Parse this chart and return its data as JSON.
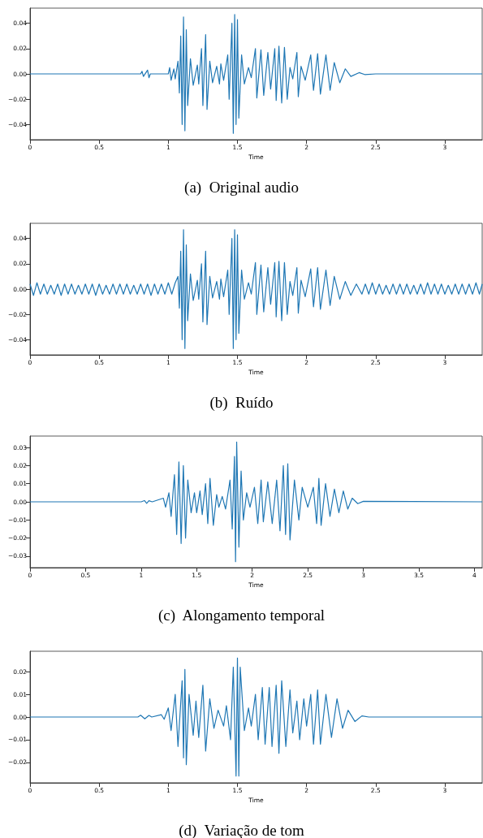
{
  "chart_data": [
    {
      "type": "line",
      "title": "(a)  Original audio",
      "xlabel": "Time",
      "color": "#1f77b4",
      "marker": "none",
      "line_style": "solid",
      "x": [
        0,
        0.8,
        0.81,
        0.82,
        0.85,
        0.86,
        0.87,
        1.0,
        1.01,
        1.02,
        1.04,
        1.05,
        1.07,
        1.08,
        1.09,
        1.1,
        1.11,
        1.12,
        1.13,
        1.14,
        1.16,
        1.18,
        1.21,
        1.22,
        1.24,
        1.25,
        1.27,
        1.28,
        1.3,
        1.32,
        1.35,
        1.37,
        1.38,
        1.4,
        1.43,
        1.44,
        1.46,
        1.47,
        1.48,
        1.49,
        1.5,
        1.51,
        1.53,
        1.55,
        1.58,
        1.6,
        1.63,
        1.64,
        1.67,
        1.69,
        1.72,
        1.74,
        1.77,
        1.78,
        1.8,
        1.82,
        1.84,
        1.86,
        1.88,
        1.9,
        1.93,
        1.94,
        1.96,
        1.99,
        2.03,
        2.05,
        2.08,
        2.1,
        2.14,
        2.17,
        2.2,
        2.24,
        2.28,
        2.32,
        2.38,
        2.42,
        2.5,
        3.27
      ],
      "values": [
        0,
        0,
        0.002,
        -0.002,
        0.003,
        -0.003,
        0,
        0,
        0.005,
        -0.005,
        0.004,
        -0.004,
        0.01,
        -0.015,
        0.03,
        -0.04,
        0.045,
        -0.045,
        0.035,
        -0.025,
        0.012,
        -0.009,
        0.007,
        -0.008,
        0.02,
        -0.025,
        0.031,
        -0.028,
        0.01,
        -0.007,
        0.006,
        -0.008,
        0.008,
        -0.005,
        0.015,
        -0.02,
        0.04,
        -0.047,
        0.047,
        -0.04,
        0.043,
        -0.035,
        0.015,
        -0.008,
        0.005,
        -0.003,
        0.02,
        -0.019,
        0.019,
        -0.017,
        0.017,
        -0.012,
        0.02,
        -0.021,
        0.022,
        -0.023,
        0.021,
        -0.02,
        0.005,
        -0.004,
        0.017,
        -0.018,
        0.006,
        -0.005,
        0.015,
        -0.013,
        0.016,
        -0.016,
        0.015,
        -0.013,
        0.009,
        -0.007,
        0.004,
        -0.002,
        0.001,
        -0.0005,
        0,
        0
      ],
      "xlim": [
        0,
        3.27
      ],
      "xticks": [
        0,
        0.5,
        1,
        1.5,
        2,
        2.5,
        3
      ],
      "ylim": [
        -0.052,
        0.052
      ],
      "yticks": [
        {
          "value": -0.04,
          "label": "−0.04"
        },
        {
          "value": -0.02,
          "label": "−0.02"
        },
        {
          "value": 0,
          "label": "0.00"
        },
        {
          "value": 0.02,
          "label": "0.02"
        },
        {
          "value": 0.04,
          "label": "0.04"
        }
      ]
    },
    {
      "type": "line",
      "title": "(b)  Ruído",
      "xlabel": "Time",
      "color": "#1f77b4",
      "marker": "none",
      "line_style": "solid",
      "x": [
        0,
        0.025,
        0.05,
        0.075,
        0.1,
        0.125,
        0.15,
        0.175,
        0.2,
        0.225,
        0.25,
        0.275,
        0.3,
        0.325,
        0.35,
        0.375,
        0.4,
        0.425,
        0.45,
        0.475,
        0.5,
        0.525,
        0.55,
        0.575,
        0.6,
        0.625,
        0.65,
        0.675,
        0.7,
        0.725,
        0.75,
        0.775,
        0.8,
        0.825,
        0.85,
        0.875,
        0.9,
        0.925,
        0.95,
        0.975,
        1.0,
        1.025,
        1.05,
        1.07,
        1.08,
        1.09,
        1.1,
        1.11,
        1.12,
        1.13,
        1.14,
        1.16,
        1.18,
        1.21,
        1.22,
        1.24,
        1.25,
        1.27,
        1.28,
        1.3,
        1.32,
        1.35,
        1.37,
        1.38,
        1.4,
        1.43,
        1.44,
        1.46,
        1.47,
        1.48,
        1.49,
        1.5,
        1.51,
        1.53,
        1.55,
        1.58,
        1.6,
        1.63,
        1.64,
        1.67,
        1.69,
        1.72,
        1.74,
        1.77,
        1.78,
        1.8,
        1.82,
        1.84,
        1.86,
        1.88,
        1.9,
        1.93,
        1.94,
        1.96,
        1.99,
        2.03,
        2.05,
        2.08,
        2.1,
        2.14,
        2.17,
        2.2,
        2.24,
        2.28,
        2.32,
        2.36,
        2.4,
        2.425,
        2.45,
        2.475,
        2.5,
        2.525,
        2.55,
        2.575,
        2.6,
        2.625,
        2.65,
        2.675,
        2.7,
        2.725,
        2.75,
        2.775,
        2.8,
        2.825,
        2.85,
        2.875,
        2.9,
        2.925,
        2.95,
        2.975,
        3.0,
        3.025,
        3.05,
        3.075,
        3.1,
        3.125,
        3.15,
        3.175,
        3.2,
        3.225,
        3.25,
        3.27
      ],
      "values": [
        0.004,
        -0.005,
        0.005,
        -0.004,
        0.004,
        -0.004,
        0.003,
        -0.004,
        0.004,
        -0.005,
        0.004,
        -0.004,
        0.004,
        -0.004,
        0.003,
        -0.004,
        0.004,
        -0.004,
        0.004,
        -0.005,
        0.004,
        -0.004,
        0.003,
        -0.004,
        0.004,
        -0.004,
        0.004,
        -0.004,
        0.004,
        -0.004,
        0.003,
        -0.004,
        0.004,
        -0.004,
        0.004,
        -0.005,
        0.004,
        -0.004,
        0.004,
        -0.004,
        0.005,
        -0.004,
        0.005,
        0.01,
        -0.015,
        0.03,
        -0.04,
        0.047,
        -0.047,
        0.035,
        -0.025,
        0.012,
        -0.009,
        0.007,
        -0.008,
        0.02,
        -0.026,
        0.03,
        -0.028,
        0.01,
        -0.007,
        0.006,
        -0.008,
        0.008,
        -0.006,
        0.015,
        -0.02,
        0.04,
        -0.047,
        0.047,
        -0.04,
        0.043,
        -0.035,
        0.015,
        -0.008,
        0.005,
        -0.004,
        0.021,
        -0.02,
        0.019,
        -0.018,
        0.017,
        -0.012,
        0.021,
        -0.022,
        0.022,
        -0.025,
        0.021,
        -0.02,
        0.006,
        -0.005,
        0.017,
        -0.019,
        0.007,
        -0.006,
        0.016,
        -0.014,
        0.017,
        -0.016,
        0.015,
        -0.013,
        0.01,
        -0.008,
        0.006,
        -0.005,
        0.004,
        -0.004,
        0.004,
        -0.004,
        0.005,
        -0.004,
        0.004,
        -0.004,
        0.003,
        -0.004,
        0.004,
        -0.004,
        0.004,
        -0.004,
        0.004,
        -0.004,
        0.003,
        -0.004,
        0.004,
        -0.004,
        0.005,
        -0.004,
        0.004,
        -0.004,
        0.004,
        -0.004,
        0.003,
        -0.004,
        0.004,
        -0.004,
        0.004,
        -0.004,
        0.004,
        -0.004,
        0.005,
        -0.004,
        0.004
      ],
      "xlim": [
        0,
        3.27
      ],
      "xticks": [
        0,
        0.5,
        1,
        1.5,
        2,
        2.5,
        3
      ],
      "ylim": [
        -0.052,
        0.052
      ],
      "yticks": [
        {
          "value": -0.04,
          "label": "−0.04"
        },
        {
          "value": -0.02,
          "label": "−0.02"
        },
        {
          "value": 0,
          "label": "0.00"
        },
        {
          "value": 0.02,
          "label": "0.02"
        },
        {
          "value": 0.04,
          "label": "0.04"
        }
      ]
    },
    {
      "type": "line",
      "title": "(c)  Alongamento temporal",
      "xlabel": "Time",
      "color": "#1f77b4",
      "marker": "none",
      "line_style": "solid",
      "x": [
        0,
        1.0,
        1.03,
        1.05,
        1.07,
        1.1,
        1.2,
        1.22,
        1.25,
        1.27,
        1.3,
        1.32,
        1.34,
        1.36,
        1.38,
        1.4,
        1.42,
        1.45,
        1.48,
        1.5,
        1.53,
        1.55,
        1.58,
        1.6,
        1.62,
        1.65,
        1.68,
        1.7,
        1.73,
        1.76,
        1.8,
        1.82,
        1.84,
        1.85,
        1.86,
        1.88,
        1.9,
        1.92,
        1.95,
        1.98,
        2.02,
        2.05,
        2.08,
        2.1,
        2.14,
        2.18,
        2.22,
        2.25,
        2.28,
        2.3,
        2.32,
        2.34,
        2.38,
        2.42,
        2.45,
        2.5,
        2.55,
        2.58,
        2.6,
        2.62,
        2.66,
        2.7,
        2.74,
        2.78,
        2.82,
        2.86,
        2.9,
        2.95,
        3.0,
        4.07
      ],
      "values": [
        0,
        0,
        0.0007,
        -0.0008,
        0.0006,
        0,
        0.002,
        -0.003,
        0.005,
        -0.008,
        0.015,
        -0.018,
        0.022,
        -0.023,
        0.02,
        -0.02,
        0.012,
        -0.006,
        0.005,
        -0.006,
        0.006,
        -0.007,
        0.01,
        -0.012,
        0.013,
        -0.013,
        0.004,
        -0.003,
        0.003,
        -0.004,
        0.012,
        -0.015,
        0.025,
        -0.033,
        0.033,
        -0.025,
        0.017,
        -0.01,
        0.005,
        -0.003,
        0.008,
        -0.012,
        0.012,
        -0.011,
        0.011,
        -0.012,
        0.012,
        -0.016,
        0.02,
        -0.018,
        0.021,
        -0.021,
        0.012,
        -0.01,
        0.008,
        -0.003,
        0.008,
        -0.012,
        0.013,
        -0.013,
        0.01,
        -0.008,
        0.007,
        -0.006,
        0.006,
        -0.004,
        0.002,
        -0.001,
        0.0003,
        0
      ],
      "xlim": [
        0,
        4.07
      ],
      "xticks": [
        0,
        0.5,
        1,
        1.5,
        2,
        2.5,
        3,
        3.5,
        4
      ],
      "ylim": [
        -0.0363,
        0.0363
      ],
      "yticks": [
        {
          "value": -0.03,
          "label": "−0.03"
        },
        {
          "value": -0.02,
          "label": "−0.02"
        },
        {
          "value": -0.01,
          "label": "−0.01"
        },
        {
          "value": 0,
          "label": "0.00"
        },
        {
          "value": 0.01,
          "label": "0.01"
        },
        {
          "value": 0.02,
          "label": "0.02"
        },
        {
          "value": 0.03,
          "label": "0.03"
        }
      ]
    },
    {
      "type": "line",
      "title": "(d)  Variação de tom",
      "xlabel": "Time",
      "color": "#1f77b4",
      "marker": "none",
      "line_style": "solid",
      "x": [
        0,
        0.78,
        0.8,
        0.83,
        0.86,
        0.88,
        0.95,
        0.97,
        1.0,
        1.02,
        1.05,
        1.07,
        1.1,
        1.11,
        1.12,
        1.13,
        1.15,
        1.18,
        1.2,
        1.22,
        1.25,
        1.27,
        1.3,
        1.33,
        1.36,
        1.4,
        1.42,
        1.45,
        1.47,
        1.49,
        1.5,
        1.51,
        1.52,
        1.55,
        1.58,
        1.6,
        1.63,
        1.65,
        1.68,
        1.7,
        1.73,
        1.75,
        1.78,
        1.8,
        1.82,
        1.85,
        1.88,
        1.9,
        1.93,
        1.95,
        1.98,
        2.0,
        2.03,
        2.05,
        2.08,
        2.1,
        2.14,
        2.18,
        2.22,
        2.26,
        2.3,
        2.35,
        2.4,
        2.45,
        3.27
      ],
      "values": [
        0,
        0,
        0.0008,
        -0.0008,
        0.0007,
        0,
        0.001,
        -0.001,
        0.004,
        -0.006,
        0.01,
        -0.013,
        0.016,
        -0.018,
        0.021,
        -0.021,
        0.01,
        -0.008,
        0.007,
        -0.009,
        0.014,
        -0.015,
        0.008,
        -0.005,
        0.003,
        -0.004,
        0.005,
        -0.01,
        0.022,
        -0.026,
        0.026,
        -0.026,
        0.022,
        -0.006,
        0.004,
        -0.004,
        0.01,
        -0.01,
        0.013,
        -0.012,
        0.013,
        -0.013,
        0.014,
        -0.016,
        0.016,
        -0.013,
        0.012,
        -0.007,
        0.007,
        -0.01,
        0.008,
        -0.004,
        0.01,
        -0.012,
        0.012,
        -0.012,
        0.01,
        -0.009,
        0.008,
        -0.005,
        0.003,
        -0.002,
        0.0005,
        0,
        0
      ],
      "xlim": [
        0,
        3.27
      ],
      "xticks": [
        0,
        0.5,
        1,
        1.5,
        2,
        2.5,
        3
      ],
      "ylim": [
        -0.029,
        0.029
      ],
      "yticks": [
        {
          "value": -0.02,
          "label": "−0.02"
        },
        {
          "value": -0.01,
          "label": "−0.01"
        },
        {
          "value": 0,
          "label": "0.00"
        },
        {
          "value": 0.01,
          "label": "0.01"
        },
        {
          "value": 0.02,
          "label": "0.02"
        }
      ]
    }
  ]
}
